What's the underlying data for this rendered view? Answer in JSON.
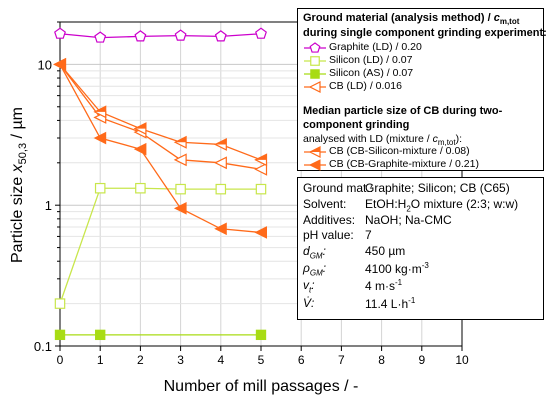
{
  "chart_data": {
    "type": "line",
    "xlabel": "Number of mill passages / -",
    "ylabel": "Particle size x50,3 / µm",
    "ylabel_main": "Particle size ",
    "ylabel_var": "x",
    "ylabel_sub": "50,3",
    "ylabel_unit": " / µm",
    "xlim": [
      0,
      10
    ],
    "ylim": [
      0.1,
      20
    ],
    "yscale": "log",
    "grid": true,
    "x_ticks": [
      "0",
      "1",
      "2",
      "3",
      "4",
      "5",
      "6",
      "7",
      "8",
      "9",
      "10"
    ],
    "y_ticks": [
      {
        "value": 0.1,
        "label": "0.1"
      },
      {
        "value": 1,
        "label": "1"
      },
      {
        "value": 10,
        "label": "10"
      }
    ],
    "series": [
      {
        "name": "Graphite (LD) / 0.20",
        "color": "#cc00cc",
        "marker": "pentagon-open",
        "x": [
          0,
          1,
          2,
          3,
          4,
          5
        ],
        "y": [
          16.5,
          15.5,
          15.8,
          16.0,
          15.8,
          16.5
        ]
      },
      {
        "name": "Silicon (LD) / 0.07",
        "color": "#c8e64b",
        "marker": "square-open",
        "x": [
          0,
          1,
          2,
          3,
          4,
          5
        ],
        "y": [
          0.2,
          1.32,
          1.32,
          1.3,
          1.3,
          1.3
        ]
      },
      {
        "name": "Silicon (AS) / 0.07",
        "color": "#a8dc14",
        "marker": "square-filled",
        "x": [
          0,
          1,
          5
        ],
        "y": [
          0.12,
          0.12,
          0.12
        ]
      },
      {
        "name": "CB (LD) / 0.016",
        "color": "#ff6a1a",
        "marker": "triangle-left-open",
        "x": [
          0,
          1,
          2,
          3,
          4,
          5
        ],
        "y": [
          10.0,
          4.2,
          3.3,
          2.1,
          2.0,
          1.8
        ]
      },
      {
        "name": "CB (CB-Silicon-mixture / 0.08)",
        "color": "#ff6a1a",
        "marker": "triangle-left-half",
        "x": [
          0,
          1,
          2,
          3,
          4,
          5
        ],
        "y": [
          10.0,
          4.6,
          3.5,
          2.8,
          2.7,
          2.1
        ]
      },
      {
        "name": "CB (CB-Graphite-mixture / 0.21)",
        "color": "#ff6a1a",
        "marker": "triangle-left-filled",
        "x": [
          0,
          1,
          2,
          3,
          4,
          5
        ],
        "y": [
          10.0,
          3.0,
          2.5,
          0.95,
          0.68,
          0.64
        ]
      }
    ]
  },
  "legend": {
    "title_line1": "Ground material (analysis method) / ",
    "title_cmtot": "c",
    "title_cmtot_sub": "m,tot",
    "title_line2": "during single component grinding experiment:",
    "entries_single": [
      {
        "label": "Graphite (LD) / 0.20"
      },
      {
        "label": "Silicon (LD) / 0.07"
      },
      {
        "label": "Silicon (AS) / 0.07"
      },
      {
        "label": "CB (LD) / 0.016"
      }
    ],
    "title2_line1": "Median particle size of CB during two-",
    "title2_line2": "component grinding",
    "sub_text": "analysed with LD (mixture / ",
    "sub_c": "c",
    "sub_c_sub": "m,tot",
    "sub_end": "):",
    "entries_two": [
      {
        "label": "CB (CB-Silicon-mixture   / 0.08)"
      },
      {
        "label": "CB (CB-Graphite-mixture / 0.21)"
      }
    ]
  },
  "params": {
    "ground_label": "Ground mat.:",
    "ground_value": "Graphite; Silicon; CB (C65)",
    "solvent_label": "Solvent:",
    "solvent_value_a": "EtOH:H",
    "solvent_value_sub": "2",
    "solvent_value_b": "O mixture (2:3; w:w)",
    "additives_label": "Additives:",
    "additives_value": "NaOH; Na-CMC",
    "ph_label": "pH value:",
    "ph_value": "7",
    "dgm_label": "d",
    "dgm_sub": "GM",
    "dgm_value": "450 µm",
    "rho_label": "ρ",
    "rho_sub": "GM",
    "rho_value_a": "4100 kg·m",
    "rho_value_sup": "-3",
    "vt_label": "v",
    "vt_sub": "t",
    "vt_value_a": "4 m·s",
    "vt_value_sup": "-1",
    "vdot_label": "V̇",
    "vdot_value_a": "11.4 L·h",
    "vdot_value_sup": "-1"
  }
}
